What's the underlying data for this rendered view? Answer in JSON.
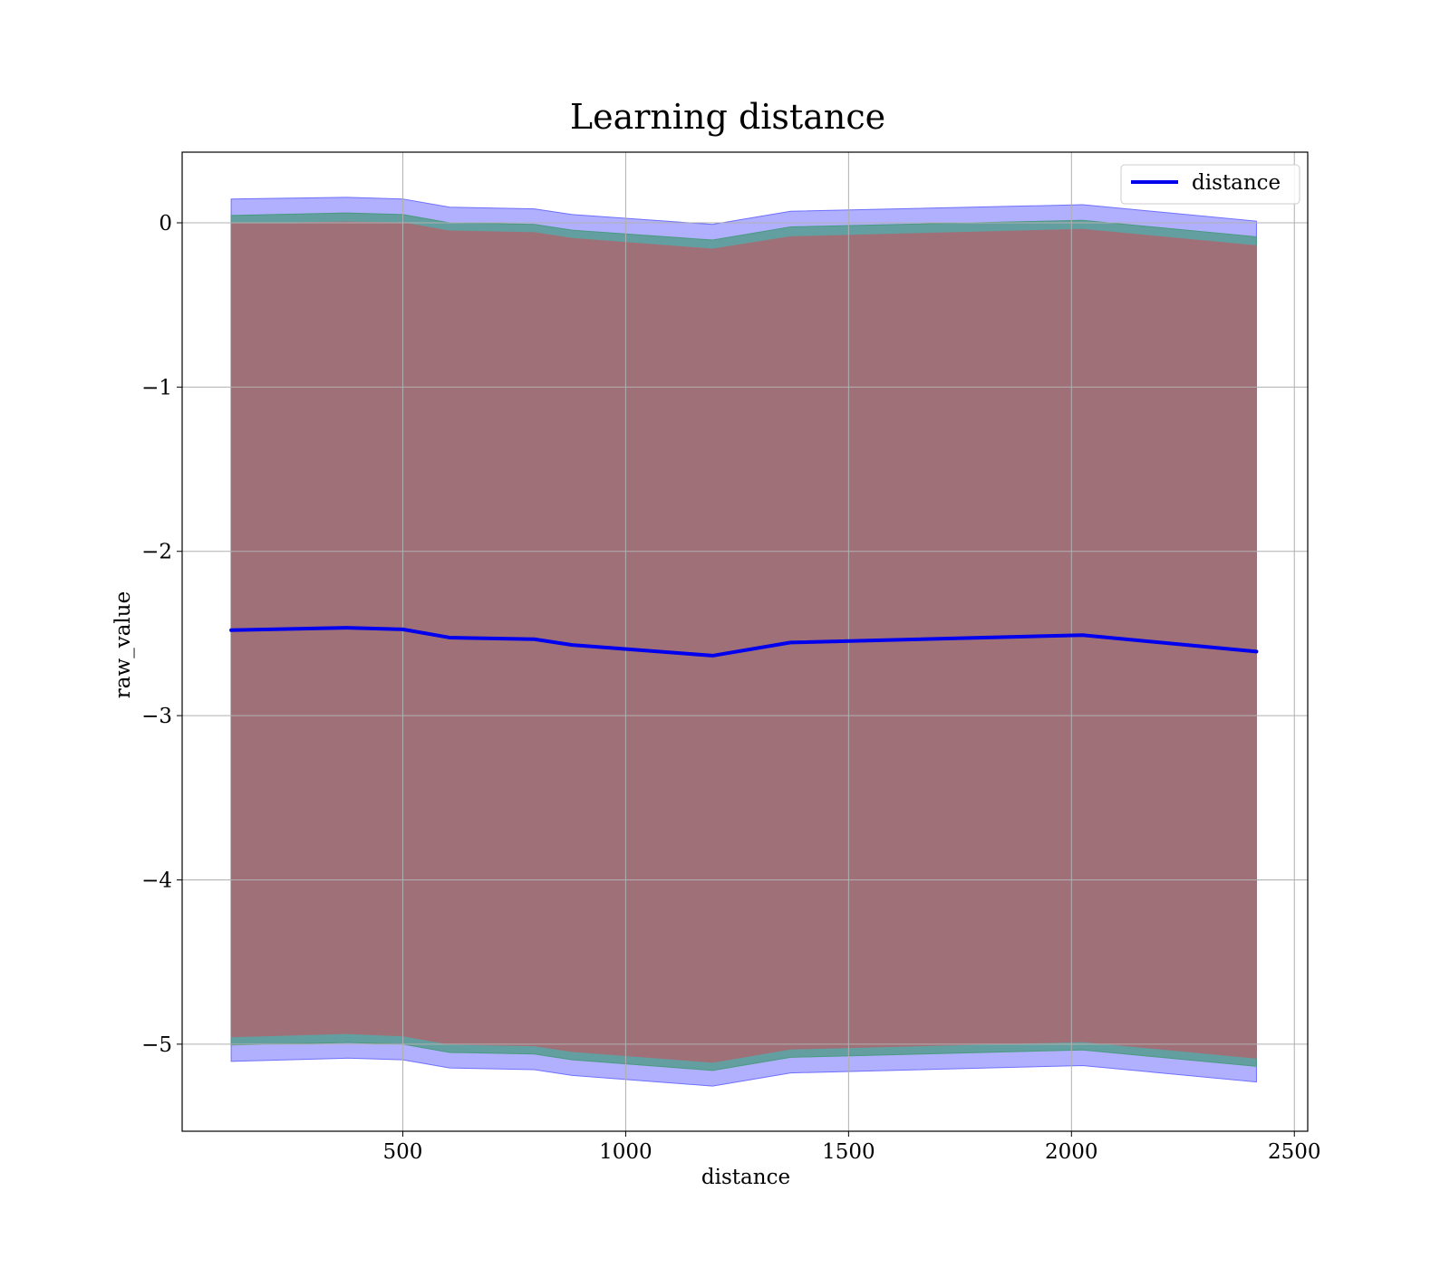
{
  "chart_data": {
    "type": "line",
    "title": "Learning distance",
    "xlabel": "distance",
    "ylabel": "raw_value",
    "xlim": [
      5,
      2530
    ],
    "ylim": [
      -5.53,
      0.43
    ],
    "xticks": [
      500,
      1000,
      1500,
      2000,
      2500
    ],
    "xtick_labels": [
      "500",
      "1000",
      "1500",
      "2000",
      "2500"
    ],
    "yticks": [
      0,
      -1,
      -2,
      -3,
      -4,
      -5
    ],
    "ytick_labels": [
      "0",
      "−1",
      "−2",
      "−3",
      "−4",
      "−5"
    ],
    "grid": true,
    "legend": {
      "position": "top-right",
      "entries": [
        "distance"
      ]
    },
    "x": [
      115,
      375,
      500,
      605,
      795,
      880,
      1195,
      1370,
      2025,
      2415
    ],
    "series": [
      {
        "name": "distance",
        "color": "#0000ee",
        "values": [
          -2.48,
          -2.465,
          -2.475,
          -2.525,
          -2.535,
          -2.57,
          -2.635,
          -2.555,
          -2.51,
          -2.61
        ]
      }
    ],
    "bands": [
      {
        "label_hint": "outer",
        "color": "#6f6fff",
        "opacity": 0.55,
        "upper": [
          0.145,
          0.155,
          0.145,
          0.095,
          0.085,
          0.05,
          -0.01,
          0.07,
          0.11,
          0.01
        ],
        "lower": [
          -5.105,
          -5.085,
          -5.095,
          -5.145,
          -5.155,
          -5.19,
          -5.255,
          -5.175,
          -5.13,
          -5.23
        ]
      },
      {
        "label_hint": "middle",
        "color": "#4a9a80",
        "opacity": 0.75,
        "upper": [
          0.045,
          0.06,
          0.05,
          0.0,
          -0.01,
          -0.045,
          -0.105,
          -0.025,
          0.015,
          -0.085
        ],
        "lower": [
          -5.005,
          -4.99,
          -5.0,
          -5.05,
          -5.06,
          -5.095,
          -5.16,
          -5.08,
          -5.035,
          -5.135
        ]
      },
      {
        "label_hint": "inner",
        "color": "#a07078",
        "opacity": 1.0,
        "upper": [
          -0.005,
          0.005,
          0.0,
          -0.05,
          -0.06,
          -0.095,
          -0.16,
          -0.085,
          -0.04,
          -0.14
        ],
        "lower": [
          -4.955,
          -4.935,
          -4.95,
          -5.0,
          -5.01,
          -5.045,
          -5.11,
          -5.03,
          -4.985,
          -5.085
        ]
      }
    ]
  }
}
